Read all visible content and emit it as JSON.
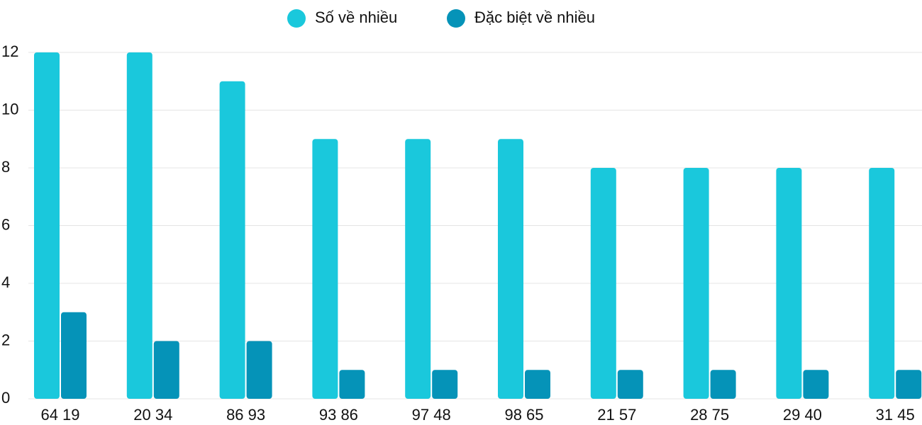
{
  "chart_data": {
    "type": "bar",
    "categories": [
      "64 19",
      "20 34",
      "86 93",
      "93 86",
      "97 48",
      "98 65",
      "21 57",
      "28 75",
      "29 40",
      "31 45"
    ],
    "series": [
      {
        "name": "Số về nhiều",
        "color": "#1ac8dc",
        "values": [
          12,
          12,
          11,
          9,
          9,
          9,
          8,
          8,
          8,
          8
        ]
      },
      {
        "name": "Đặc biệt về nhiều",
        "color": "#0593b8",
        "values": [
          3,
          2,
          2,
          1,
          1,
          1,
          1,
          1,
          1,
          1
        ]
      }
    ],
    "ylim": [
      0,
      12
    ],
    "yticks": [
      0,
      2,
      4,
      6,
      8,
      10,
      12
    ],
    "grid": true,
    "legend": "top"
  }
}
